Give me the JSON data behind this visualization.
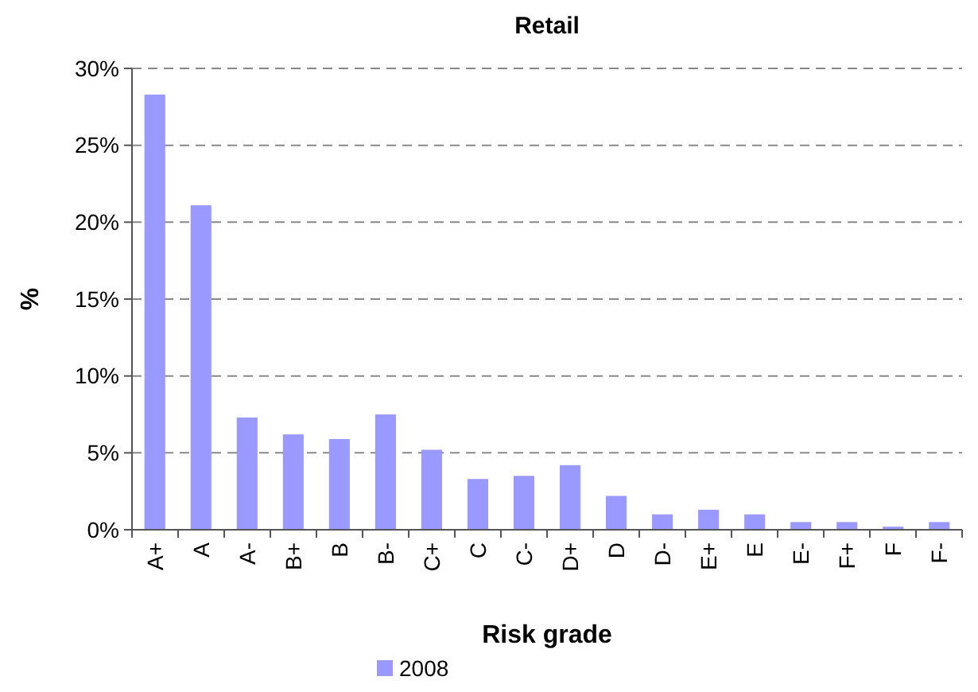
{
  "chart_data": {
    "type": "bar",
    "title": "Retail",
    "xlabel": "Risk grade",
    "ylabel": "%",
    "categories": [
      "A+",
      "A",
      "A-",
      "B+",
      "B",
      "B-",
      "C+",
      "C",
      "C-",
      "D+",
      "D",
      "D-",
      "E+",
      "E",
      "E-",
      "F+",
      "F",
      "F-"
    ],
    "series": [
      {
        "name": "2008",
        "color": "#9999ff",
        "values": [
          28.3,
          21.1,
          7.3,
          6.2,
          5.9,
          7.5,
          5.2,
          3.3,
          3.5,
          4.2,
          2.2,
          1.0,
          1.3,
          1.0,
          0.5,
          0.5,
          0.2,
          0.5
        ]
      }
    ],
    "ylim": [
      0,
      30
    ],
    "yticks": [
      {
        "value": 0,
        "label": "0%"
      },
      {
        "value": 5,
        "label": "5%"
      },
      {
        "value": 10,
        "label": "10%"
      },
      {
        "value": 15,
        "label": "15%"
      },
      {
        "value": 20,
        "label": "20%"
      },
      {
        "value": 25,
        "label": "25%"
      },
      {
        "value": 30,
        "label": "30%"
      }
    ],
    "grid": "y",
    "legend": "bottom"
  }
}
